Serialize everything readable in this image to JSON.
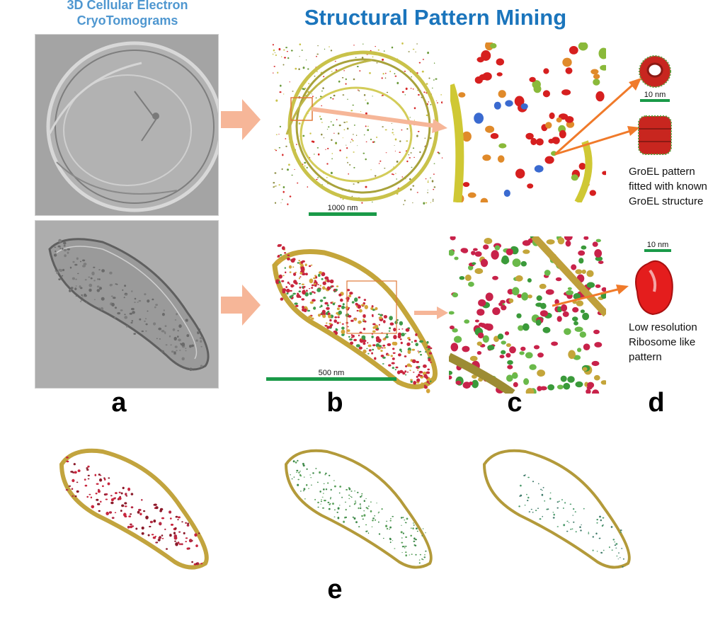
{
  "header": {
    "left_line1": "3D Cellular Electron",
    "left_line2": "CryoTomograms",
    "center": "Structural Pattern Mining"
  },
  "panel_labels": {
    "a": "a",
    "b": "b",
    "c": "c",
    "d": "d",
    "e": "e"
  },
  "scale_bars": {
    "top_b": "1000 nm",
    "bottom_b": "500 nm",
    "top_d": "10 nm",
    "bottom_d": "10 nm"
  },
  "captions": {
    "groel": [
      "GroEL pattern",
      "fitted with known",
      "GroEL structure"
    ],
    "ribosome": [
      "Low resolution",
      "Ribosome like",
      "pattern"
    ]
  },
  "colors": {
    "header_left": "#4f97d0",
    "header_center": "#1b75bc",
    "big_arrow": "#f6b698",
    "callout_arrow": "#f07a2a",
    "scale_bar": "#1a9a48",
    "particle_red": "#d62a2a",
    "membrane_yellow": "#c9c24a"
  }
}
